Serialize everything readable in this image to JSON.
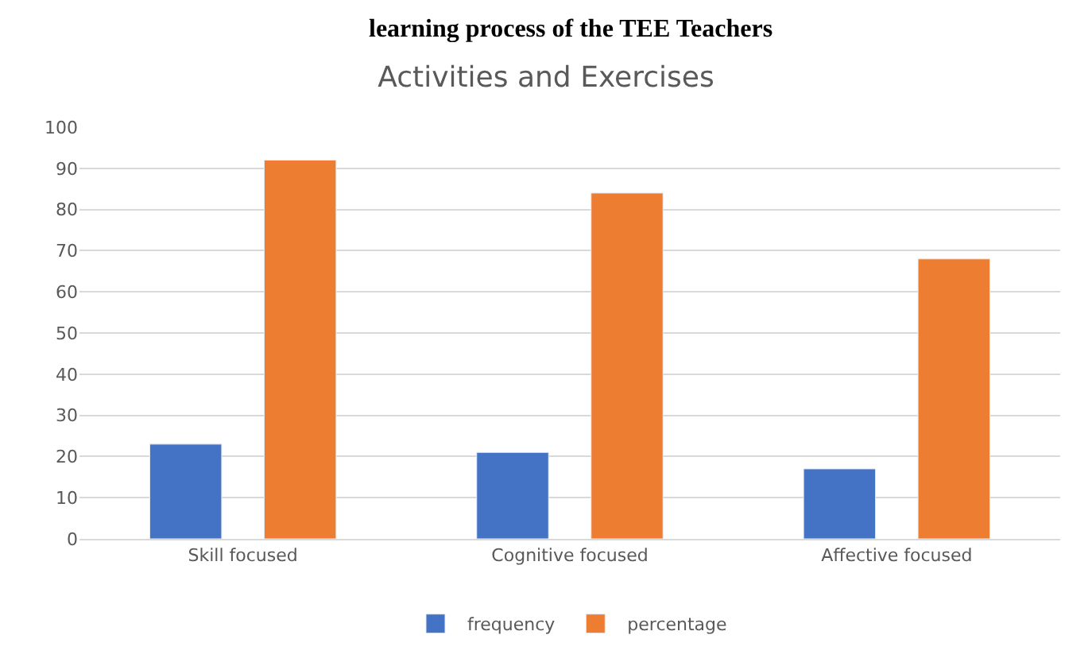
{
  "chart_data": {
    "type": "bar",
    "title": "Activities and Exercises",
    "annotations": [
      "learning process of the TEE Teachers"
    ],
    "categories": [
      "Skill focused",
      "Cognitive focused",
      "Affective focused"
    ],
    "series": [
      {
        "name": "frequency",
        "color": "#4472c4",
        "values": [
          23,
          21,
          17
        ]
      },
      {
        "name": "percentage",
        "color": "#ed7d31",
        "values": [
          92,
          84,
          68
        ]
      }
    ],
    "ylim": [
      0,
      100
    ],
    "yticks": [
      0,
      10,
      20,
      30,
      40,
      50,
      60,
      70,
      80,
      90,
      100
    ],
    "grid": "y",
    "legend": "bottom"
  }
}
